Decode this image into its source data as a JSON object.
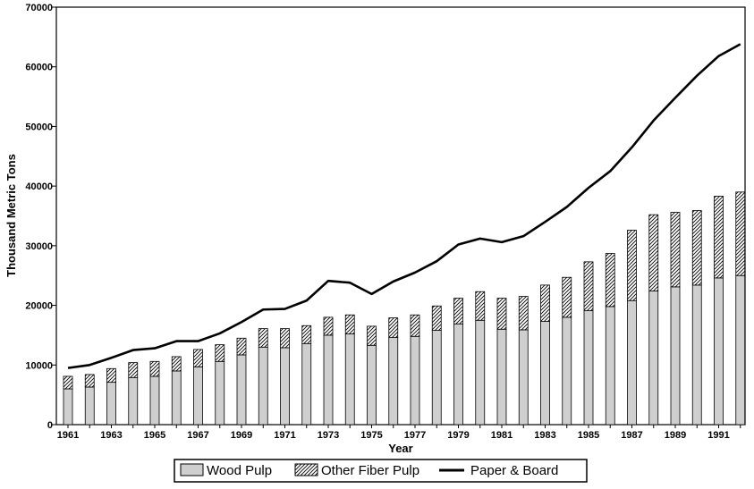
{
  "chart_data": {
    "type": "bar",
    "title": "",
    "xlabel": "Year",
    "ylabel": "Thousand Metric Tons",
    "ylim": [
      0,
      70000
    ],
    "yticks": [
      0,
      10000,
      20000,
      30000,
      40000,
      50000,
      60000,
      70000
    ],
    "ytick_labels": [
      "0",
      "10000",
      "20000",
      "30000",
      "40000",
      "50000",
      "60000",
      "70000"
    ],
    "xtick_labels": [
      "1961",
      "1963",
      "1965",
      "1967",
      "1969",
      "1971",
      "1973",
      "1975",
      "1977",
      "1979",
      "1981",
      "1983",
      "1985",
      "1987",
      "1989",
      "1991"
    ],
    "grid": false,
    "legend_position": "bottom",
    "stacked": true,
    "x": [
      1961,
      1962,
      1963,
      1964,
      1965,
      1966,
      1967,
      1968,
      1969,
      1970,
      1971,
      1972,
      1973,
      1974,
      1975,
      1976,
      1977,
      1978,
      1979,
      1980,
      1981,
      1982,
      1983,
      1984,
      1985,
      1986,
      1987,
      1988,
      1989,
      1990,
      1991,
      1992
    ],
    "series": [
      {
        "name": "Wood Pulp",
        "kind": "bar",
        "color": "#cfcfcf",
        "values": [
          6000,
          6300,
          7100,
          7900,
          8100,
          9000,
          9700,
          10600,
          11700,
          13000,
          12900,
          13600,
          15000,
          15200,
          13300,
          14600,
          14800,
          15800,
          16900,
          17500,
          16000,
          15900,
          17300,
          18000,
          19100,
          19800,
          20800,
          22400,
          23100,
          23400,
          24600,
          25000
        ]
      },
      {
        "name": "Other Fiber Pulp",
        "kind": "bar-hatched",
        "color": "#000000",
        "values": [
          2100,
          2100,
          2300,
          2500,
          2500,
          2400,
          2900,
          2800,
          2800,
          3100,
          3200,
          3000,
          3000,
          3200,
          3200,
          3300,
          3600,
          4100,
          4300,
          4800,
          5200,
          5600,
          6100,
          6700,
          8200,
          8900,
          11800,
          12800,
          12500,
          12500,
          13700,
          14000
        ]
      },
      {
        "name": "Paper & Board",
        "kind": "line",
        "color": "#000000",
        "values": [
          9500,
          10000,
          11200,
          12500,
          12800,
          14000,
          14000,
          15300,
          17200,
          19300,
          19400,
          20800,
          24100,
          23800,
          21900,
          24000,
          25500,
          27400,
          30200,
          31200,
          30600,
          31600,
          34000,
          36500,
          39700,
          42500,
          46500,
          51000,
          54800,
          58500,
          61800,
          63800
        ]
      }
    ]
  }
}
